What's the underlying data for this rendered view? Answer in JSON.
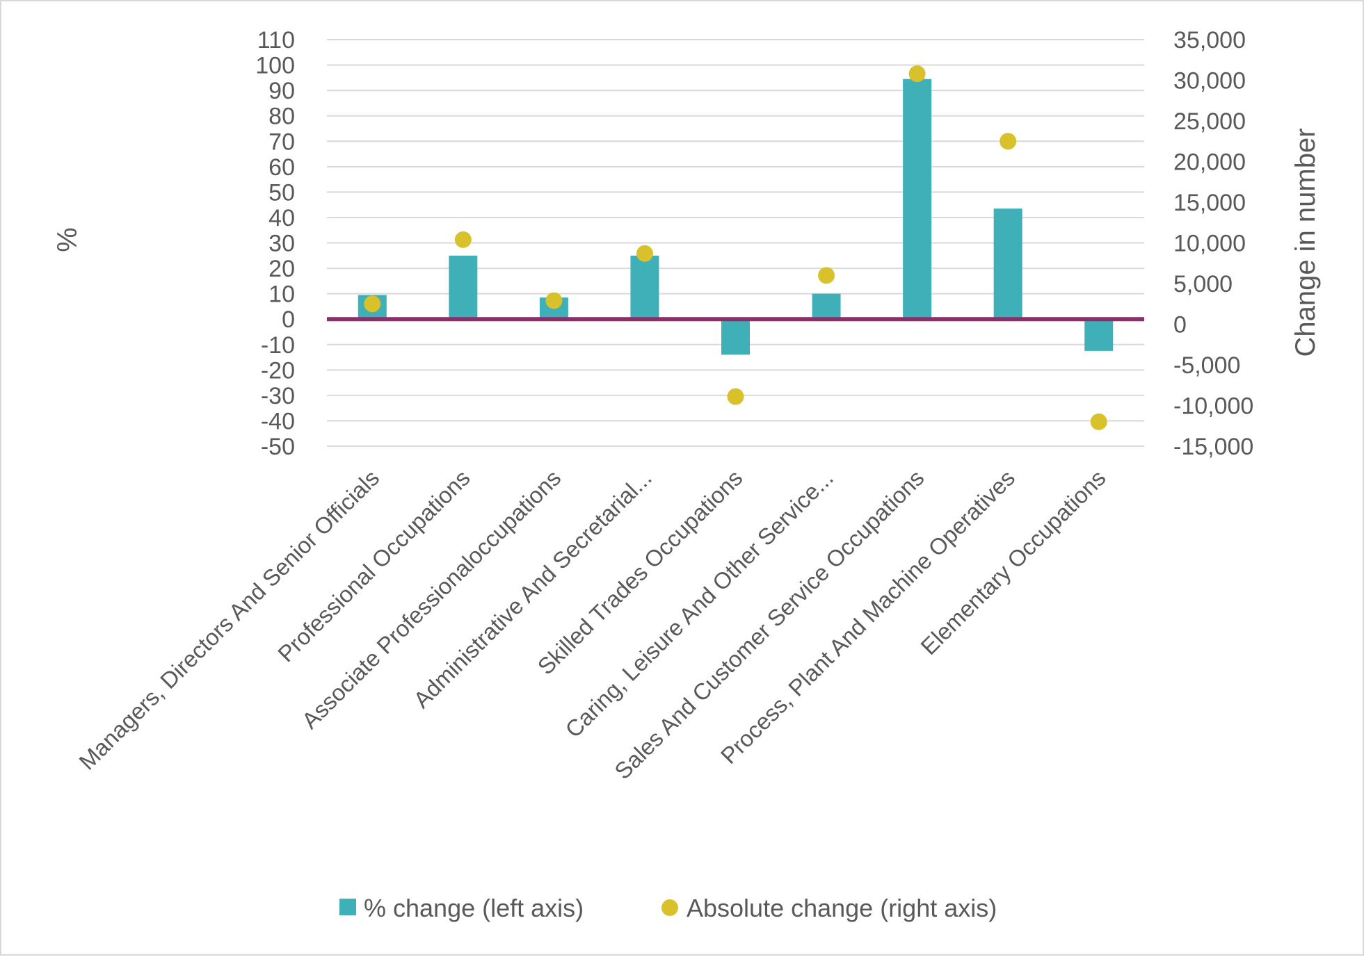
{
  "chart_data": {
    "type": "bar",
    "categories": [
      "Managers, Directors And Senior Officials",
      "Professional Occupations",
      "Associate Professionaloccupations",
      "Administrative And Secretarial...",
      "Skilled Trades Occupations",
      "Caring, Leisure And Other Service...",
      "Sales And Customer Service Occupations",
      "Process, Plant And Machine Operatives",
      "Elementary Occupations"
    ],
    "series": [
      {
        "name": "% change (left axis)",
        "type": "bar",
        "axis": "left",
        "color": "#3fb0b8",
        "values": [
          9.5,
          25,
          8.5,
          25,
          -14,
          10,
          94.5,
          43.5,
          -12.5
        ]
      },
      {
        "name": "Absolute change (right axis)",
        "type": "scatter",
        "axis": "right",
        "color": "#d8c12a",
        "values": [
          2500,
          10400,
          2900,
          8700,
          -8900,
          6000,
          30800,
          22500,
          -12000
        ]
      }
    ],
    "ylabel_left": "%",
    "ylabel_right": "Change in number",
    "xlabel": "",
    "ylim_left": [
      -50,
      110
    ],
    "ylim_right": [
      -15000,
      35000
    ],
    "yticks_left": [
      "110",
      "100",
      "90",
      "80",
      "70",
      "60",
      "50",
      "40",
      "30",
      "20",
      "10",
      "0",
      "-10",
      "-20",
      "-30",
      "-40",
      "-50"
    ],
    "yticks_right": [
      "35,000",
      "30,000",
      "25,000",
      "20,000",
      "15,000",
      "10,000",
      "5,000",
      "0",
      "-5,000",
      "-10,000",
      "-15,000"
    ],
    "grid": true,
    "zero_line_color": "#8b2f6b",
    "legend_position": "bottom"
  }
}
